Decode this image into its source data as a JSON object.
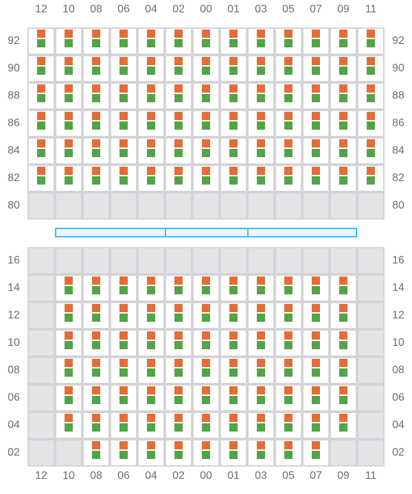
{
  "columns": [
    "12",
    "10",
    "08",
    "06",
    "04",
    "02",
    "00",
    "01",
    "03",
    "05",
    "07",
    "09",
    "11"
  ],
  "colors": {
    "orange_marker": "#e36d37",
    "green_marker": "#52a447",
    "unavailable": "#e4e4e7",
    "divider": "#38bdf8"
  },
  "top_section": {
    "rows": [
      {
        "label": "92",
        "cells": "1111111111111"
      },
      {
        "label": "90",
        "cells": "1111111111111"
      },
      {
        "label": "88",
        "cells": "1111111111111"
      },
      {
        "label": "86",
        "cells": "1111111111111"
      },
      {
        "label": "84",
        "cells": "1111111111111"
      },
      {
        "label": "82",
        "cells": "1111111111111"
      },
      {
        "label": "80",
        "cells": "0000000000000"
      }
    ]
  },
  "divider_segments": 3,
  "bottom_section": {
    "rows": [
      {
        "label": "16",
        "cells": "0000000000000"
      },
      {
        "label": "14",
        "cells": "0111111111110"
      },
      {
        "label": "12",
        "cells": "0111111111110"
      },
      {
        "label": "10",
        "cells": "0111111111110"
      },
      {
        "label": "08",
        "cells": "0111111111110"
      },
      {
        "label": "06",
        "cells": "0111111111110"
      },
      {
        "label": "04",
        "cells": "0111111111110"
      },
      {
        "label": "02",
        "cells": "0011111111100"
      }
    ]
  }
}
